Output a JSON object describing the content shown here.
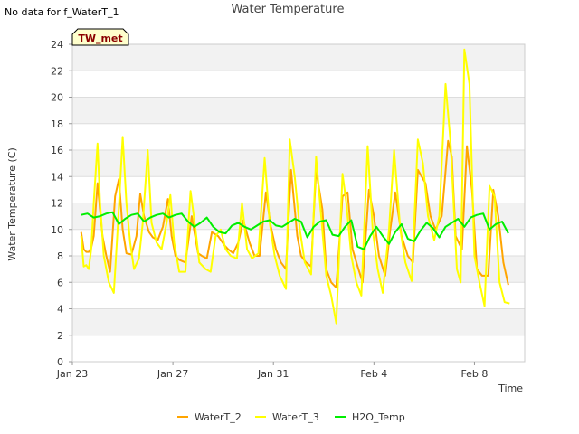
{
  "note": "No data for f_WaterT_1",
  "chart_data": {
    "type": "line",
    "title": "Water Temperature",
    "xlabel": "Time",
    "ylabel": "Water Temperature (C)",
    "site_tag": "TW_met",
    "x_unit": "days",
    "x_ticks": [
      {
        "x": 0,
        "label": "Jan 23"
      },
      {
        "x": 4,
        "label": "Jan 27"
      },
      {
        "x": 8,
        "label": "Jan 31"
      },
      {
        "x": 12,
        "label": "Feb 4"
      },
      {
        "x": 16,
        "label": "Feb 8"
      }
    ],
    "xlim": [
      0,
      18
    ],
    "ylim": [
      0,
      24
    ],
    "y_ticks": [
      0,
      2,
      4,
      6,
      8,
      10,
      12,
      14,
      16,
      18,
      20,
      22,
      24
    ],
    "grid": "horizontal bands",
    "legend_position": "bottom",
    "series": [
      {
        "name": "WaterT_2",
        "color": "#FFA500",
        "x": [
          0.35,
          0.45,
          0.55,
          0.65,
          0.75,
          0.85,
          1.0,
          1.2,
          1.35,
          1.5,
          1.7,
          1.85,
          2.0,
          2.15,
          2.35,
          2.55,
          2.7,
          2.85,
          3.05,
          3.2,
          3.4,
          3.6,
          3.8,
          3.95,
          4.1,
          4.25,
          4.5,
          4.75,
          5.0,
          5.15,
          5.35,
          5.55,
          5.8,
          6.05,
          6.2,
          6.4,
          6.6,
          6.8,
          7.05,
          7.25,
          7.45,
          7.7,
          7.9,
          8.1,
          8.3,
          8.5,
          8.7,
          8.95,
          9.1,
          9.3,
          9.5,
          9.7,
          9.95,
          10.1,
          10.3,
          10.5,
          10.75,
          10.95,
          11.15,
          11.35,
          11.55,
          11.8,
          12.0,
          12.2,
          12.45,
          12.65,
          12.85,
          13.1,
          13.35,
          13.55,
          13.75,
          14.05,
          14.25,
          14.45,
          14.7,
          14.95,
          15.1,
          15.25,
          15.5,
          15.7,
          15.9,
          16.1,
          16.3,
          16.55,
          16.75,
          16.95,
          17.15,
          17.35
        ],
        "values": [
          9.8,
          8.5,
          8.3,
          8.3,
          8.6,
          9.5,
          13.5,
          9.5,
          8.0,
          6.8,
          12.5,
          13.8,
          10.0,
          8.2,
          8.1,
          9.5,
          12.7,
          11.0,
          9.8,
          9.4,
          9.2,
          10.2,
          12.3,
          9.5,
          8.0,
          7.7,
          7.5,
          11.0,
          8.2,
          8.0,
          7.8,
          9.8,
          9.5,
          8.8,
          8.5,
          8.2,
          9.0,
          10.7,
          9.0,
          8.0,
          8.0,
          12.8,
          10.2,
          8.5,
          7.5,
          7.0,
          14.5,
          9.5,
          8.0,
          7.5,
          7.2,
          14.5,
          11.5,
          7.0,
          6.0,
          5.6,
          12.5,
          12.8,
          8.5,
          7.2,
          6.0,
          13.0,
          11.0,
          8.0,
          6.5,
          10.0,
          12.8,
          9.5,
          8.0,
          7.5,
          14.5,
          13.5,
          11.0,
          10.0,
          11.0,
          16.7,
          15.5,
          9.5,
          8.5,
          16.3,
          13.0,
          7.0,
          6.5,
          6.5,
          13.0,
          11.0,
          7.5,
          5.8
        ]
      },
      {
        "name": "WaterT_3",
        "color": "#FFFF00",
        "x": [
          0.35,
          0.45,
          0.55,
          0.65,
          0.75,
          0.85,
          1.0,
          1.1,
          1.25,
          1.45,
          1.65,
          1.8,
          2.0,
          2.15,
          2.3,
          2.45,
          2.65,
          2.8,
          3.0,
          3.15,
          3.35,
          3.55,
          3.75,
          3.9,
          4.05,
          4.25,
          4.5,
          4.7,
          4.9,
          5.05,
          5.3,
          5.5,
          5.7,
          5.9,
          6.1,
          6.3,
          6.55,
          6.75,
          6.95,
          7.15,
          7.4,
          7.65,
          7.85,
          8.05,
          8.25,
          8.5,
          8.65,
          8.85,
          9.05,
          9.25,
          9.5,
          9.7,
          9.9,
          10.1,
          10.3,
          10.5,
          10.75,
          10.9,
          11.1,
          11.3,
          11.5,
          11.75,
          11.95,
          12.15,
          12.35,
          12.6,
          12.8,
          13.05,
          13.25,
          13.5,
          13.75,
          13.95,
          14.15,
          14.4,
          14.6,
          14.85,
          15.05,
          15.3,
          15.45,
          15.6,
          15.8,
          16.0,
          16.2,
          16.4,
          16.6,
          16.8,
          17.0,
          17.2,
          17.4
        ],
        "values": [
          9.5,
          7.2,
          7.3,
          7.0,
          8.5,
          12.0,
          16.5,
          12.0,
          8.0,
          6.0,
          5.2,
          10.0,
          17.0,
          12.0,
          9.0,
          7.0,
          7.8,
          10.5,
          16.0,
          10.5,
          9.0,
          8.5,
          10.5,
          12.6,
          9.0,
          6.8,
          6.8,
          12.9,
          10.0,
          7.5,
          7.0,
          6.8,
          9.5,
          10.0,
          8.5,
          8.0,
          7.8,
          12.0,
          8.5,
          7.8,
          8.2,
          15.4,
          10.5,
          8.0,
          6.5,
          5.5,
          16.8,
          14.0,
          10.0,
          7.5,
          6.6,
          15.5,
          11.0,
          6.5,
          5.0,
          2.9,
          14.2,
          12.0,
          8.0,
          6.0,
          5.0,
          16.3,
          10.0,
          7.0,
          5.2,
          10.0,
          16.0,
          10.0,
          7.5,
          6.1,
          16.8,
          15.0,
          11.0,
          9.2,
          11.0,
          21.0,
          16.5,
          7.0,
          6.0,
          23.6,
          21.0,
          8.0,
          6.0,
          4.2,
          13.3,
          12.5,
          6.0,
          4.5,
          4.4
        ]
      },
      {
        "name": "H2O_Temp",
        "color": "#00EE00",
        "x": [
          0.35,
          0.6,
          0.85,
          1.1,
          1.35,
          1.6,
          1.85,
          2.1,
          2.35,
          2.6,
          2.85,
          3.1,
          3.35,
          3.6,
          3.85,
          4.1,
          4.35,
          4.6,
          4.85,
          5.1,
          5.35,
          5.6,
          5.85,
          6.1,
          6.35,
          6.6,
          6.85,
          7.1,
          7.35,
          7.6,
          7.85,
          8.1,
          8.35,
          8.6,
          8.85,
          9.1,
          9.35,
          9.6,
          9.85,
          10.1,
          10.35,
          10.6,
          10.85,
          11.1,
          11.35,
          11.6,
          11.85,
          12.1,
          12.35,
          12.6,
          12.85,
          13.1,
          13.35,
          13.6,
          13.85,
          14.1,
          14.35,
          14.6,
          14.85,
          15.1,
          15.35,
          15.6,
          15.85,
          16.1,
          16.35,
          16.6,
          16.85,
          17.1,
          17.35
        ],
        "values": [
          11.1,
          11.2,
          10.9,
          11.0,
          11.2,
          11.3,
          10.4,
          10.8,
          11.1,
          11.2,
          10.6,
          10.9,
          11.1,
          11.2,
          10.9,
          11.1,
          11.2,
          10.6,
          10.2,
          10.5,
          10.9,
          10.2,
          9.8,
          9.7,
          10.3,
          10.5,
          10.2,
          10.0,
          10.3,
          10.6,
          10.7,
          10.3,
          10.2,
          10.5,
          10.8,
          10.6,
          9.4,
          10.2,
          10.6,
          10.7,
          9.6,
          9.5,
          10.2,
          10.7,
          8.7,
          8.5,
          9.5,
          10.2,
          9.5,
          8.9,
          9.8,
          10.4,
          9.3,
          9.1,
          9.9,
          10.5,
          10.1,
          9.4,
          10.2,
          10.5,
          10.8,
          10.2,
          10.9,
          11.1,
          11.2,
          10.0,
          10.4,
          10.6,
          9.7
        ]
      }
    ]
  }
}
